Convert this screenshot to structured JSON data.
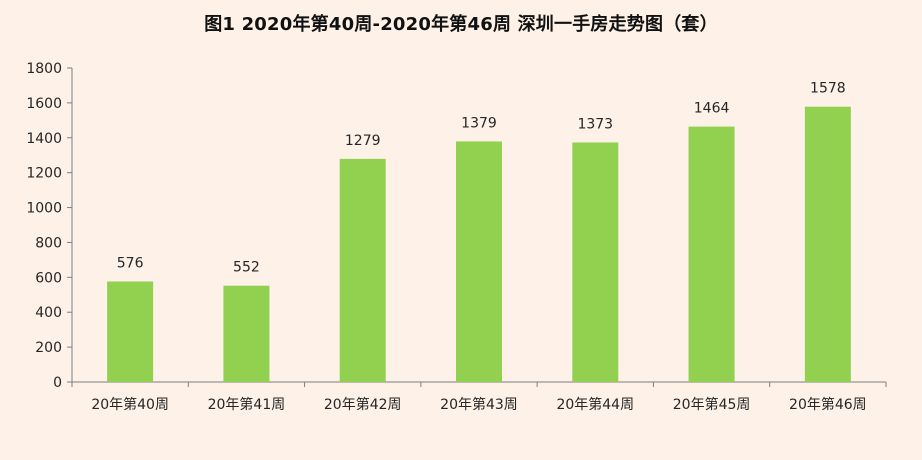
{
  "chart_data": {
    "type": "bar",
    "title": "图1  2020年第40周-2020年第46周  深圳一手房走势图（套）",
    "xlabel": "",
    "ylabel": "",
    "categories": [
      "20年第40周",
      "20年第41周",
      "20年第42周",
      "20年第43周",
      "20年第44周",
      "20年第45周",
      "20年第46周"
    ],
    "values": [
      576,
      552,
      1279,
      1379,
      1373,
      1464,
      1578
    ],
    "ylim": [
      0,
      1800
    ],
    "yticks": [
      0,
      200,
      400,
      600,
      800,
      1000,
      1200,
      1400,
      1600,
      1800
    ],
    "grid": false,
    "legend": "none",
    "data_labels": true,
    "colors": {
      "bar": "#92d050",
      "background": "#fdf1e8",
      "axis": "#7f7f7f",
      "text": "#262626"
    }
  }
}
